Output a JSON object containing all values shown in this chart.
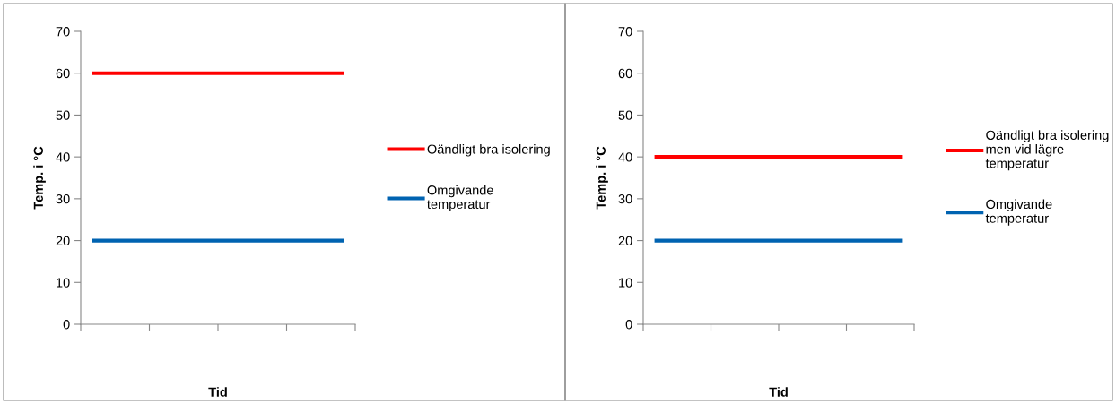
{
  "chart_data": [
    {
      "type": "line",
      "xlabel": "Tid",
      "ylabel": "Temp. i °C",
      "categories": [
        null,
        null,
        null,
        null,
        null,
        null,
        null,
        null,
        null,
        null,
        null,
        null
      ],
      "ylim": [
        0,
        70
      ],
      "yticks": [
        0,
        10,
        20,
        30,
        40,
        50,
        60,
        70
      ],
      "grid": false,
      "legend": "right",
      "marker": "none",
      "line_style": "solid",
      "series": [
        {
          "name": "Oändligt bra isolering",
          "color": "#ff0000",
          "values": [
            60,
            60,
            60,
            60,
            60,
            60,
            60,
            60,
            60,
            60,
            60,
            60
          ]
        },
        {
          "name": "Omgivande\ntemperatur",
          "color": "#0063b1",
          "values": [
            20,
            20,
            20,
            20,
            20,
            20,
            20,
            20,
            20,
            20,
            20,
            20
          ]
        }
      ]
    },
    {
      "type": "line",
      "xlabel": "Tid",
      "ylabel": "Temp. i °C",
      "categories": [
        null,
        null,
        null,
        null,
        null,
        null,
        null,
        null,
        null,
        null,
        null,
        null
      ],
      "ylim": [
        0,
        70
      ],
      "yticks": [
        0,
        10,
        20,
        30,
        40,
        50,
        60,
        70
      ],
      "grid": false,
      "legend": "right",
      "marker": "none",
      "line_style": "solid",
      "series": [
        {
          "name": "Oändligt bra isolering\nmen vid lägre\ntemperatur",
          "color": "#ff0000",
          "values": [
            40,
            40,
            40,
            40,
            40,
            40,
            40,
            40,
            40,
            40,
            40,
            40
          ]
        },
        {
          "name": "Omgivande\ntemperatur",
          "color": "#0063b1",
          "values": [
            20,
            20,
            20,
            20,
            20,
            20,
            20,
            20,
            20,
            20,
            20,
            20
          ]
        }
      ]
    }
  ]
}
